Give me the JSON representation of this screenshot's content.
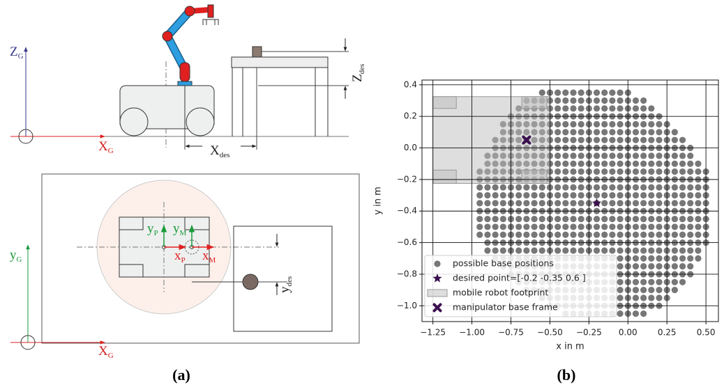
{
  "panel_a": {
    "caption": "(a)",
    "labels": {
      "z_g": {
        "main": "Z",
        "sub": "G"
      },
      "x_g_top": {
        "main": "X",
        "sub": "G"
      },
      "x_des": {
        "main": "X",
        "sub": "des"
      },
      "z_des": {
        "main": "Z",
        "sub": "des"
      },
      "y_p": {
        "main": "y",
        "sub": "P"
      },
      "y_m": {
        "main": "y",
        "sub": "M"
      },
      "x_p": {
        "main": "x",
        "sub": "P"
      },
      "x_m": {
        "main": "x",
        "sub": "M"
      },
      "y_g": {
        "main": "y",
        "sub": "G"
      },
      "x_g_bottom": {
        "main": "X",
        "sub": "G"
      },
      "y_des": {
        "main": "y",
        "sub": "des"
      }
    }
  },
  "chart_data": {
    "type": "scatter",
    "caption": "(b)",
    "xlabel": "x in m",
    "ylabel": "y in m",
    "xlim": [
      -1.32,
      0.58
    ],
    "ylim": [
      -1.1,
      0.43
    ],
    "xticks": [
      {
        "value": -1.25,
        "label": "−1.25"
      },
      {
        "value": -1,
        "label": "−1.00"
      },
      {
        "value": -0.75,
        "label": "−0.75"
      },
      {
        "value": -0.5,
        "label": "−0.50"
      },
      {
        "value": -0.25,
        "label": "−0.25"
      },
      {
        "value": 0,
        "label": "0.00"
      },
      0.25,
      {
        "value": 0.5,
        "label": "0.50"
      }
    ],
    "yticks": [
      {
        "value": -1,
        "label": "−1.0"
      },
      {
        "value": -0.8,
        "label": "−0.8"
      },
      {
        "value": -0.6,
        "label": "−0.6"
      },
      {
        "value": -0.4,
        "label": "−0.4"
      },
      {
        "value": -0.2,
        "label": "−0.2"
      },
      {
        "value": 0,
        "label": "0.0"
      },
      0.2,
      0.4
    ],
    "grid": true,
    "legend": "lower left",
    "series": [
      {
        "name": "possible base positions",
        "color": "#777777",
        "marker": "dot",
        "rows": [
          {
            "y": 0.35,
            "x": [
              -0.55,
              -0.5,
              -0.45,
              -0.4,
              -0.35,
              -0.3,
              -0.25,
              -0.2,
              -0.15,
              -0.1,
              -0.05,
              0
            ]
          },
          {
            "y": 0.3,
            "x": [
              -0.65,
              -0.6,
              -0.55,
              -0.5,
              -0.45,
              -0.4,
              -0.35,
              -0.3,
              -0.25,
              -0.2,
              -0.15,
              -0.1,
              -0.05,
              0,
              0.05,
              0.1
            ]
          },
          {
            "y": 0.25,
            "x": [
              -0.7,
              -0.65,
              -0.6,
              -0.55,
              -0.5,
              -0.45,
              -0.4,
              -0.35,
              -0.3,
              -0.25,
              -0.2,
              -0.15,
              -0.1,
              -0.05,
              0,
              0.05,
              0.1,
              0.15
            ]
          },
          {
            "y": 0.2,
            "x": [
              -0.75,
              -0.7,
              -0.65,
              -0.6,
              -0.55,
              -0.5,
              -0.45,
              -0.4,
              -0.35,
              -0.3,
              -0.25,
              -0.2,
              -0.15,
              -0.1,
              -0.05,
              0,
              0.05,
              0.1,
              0.15,
              0.2
            ]
          },
          {
            "y": 0.15,
            "x": [
              -0.8,
              -0.75,
              -0.7,
              -0.65,
              -0.6,
              -0.55,
              -0.5,
              -0.45,
              -0.4,
              -0.35,
              -0.3,
              -0.25,
              -0.2,
              -0.15,
              -0.1,
              -0.05,
              0,
              0.05,
              0.1,
              0.15,
              0.2,
              0.25
            ]
          },
          {
            "y": 0.1,
            "x": [
              -0.8,
              -0.75,
              -0.7,
              -0.65,
              -0.6,
              -0.55,
              -0.5,
              -0.45,
              -0.4,
              -0.35,
              -0.3,
              -0.25,
              -0.2,
              -0.15,
              -0.1,
              -0.05,
              0,
              0.05,
              0.1,
              0.15,
              0.2,
              0.25,
              0.3
            ]
          },
          {
            "y": 0.05,
            "x": [
              -0.85,
              -0.8,
              -0.75,
              -0.7,
              -0.65,
              -0.6,
              -0.55,
              -0.5,
              -0.45,
              -0.4,
              -0.35,
              -0.3,
              -0.25,
              -0.2,
              -0.15,
              -0.1,
              -0.05,
              0,
              0.05,
              0.1,
              0.15,
              0.2,
              0.25,
              0.3,
              0.35
            ]
          },
          {
            "y": 0,
            "x": [
              -0.85,
              -0.8,
              -0.75,
              -0.7,
              -0.65,
              -0.6,
              -0.55,
              -0.5,
              -0.45,
              -0.4,
              -0.35,
              -0.3,
              -0.25,
              -0.2,
              -0.15,
              -0.1,
              -0.05,
              0,
              0.05,
              0.1,
              0.15,
              0.2,
              0.25,
              0.3,
              0.35,
              0.4
            ]
          },
          {
            "y": -0.05,
            "x": [
              -0.9,
              -0.85,
              -0.8,
              -0.75,
              -0.7,
              -0.65,
              -0.6,
              -0.55,
              -0.5,
              -0.45,
              -0.4,
              -0.35,
              -0.3,
              -0.25,
              -0.2,
              -0.15,
              -0.1,
              -0.05,
              0,
              0.05,
              0.1,
              0.15,
              0.2,
              0.25,
              0.3,
              0.35,
              0.4
            ]
          },
          {
            "y": -0.1,
            "x": [
              -0.9,
              -0.85,
              -0.8,
              -0.75,
              -0.7,
              -0.65,
              -0.6,
              -0.55,
              -0.5,
              -0.45,
              -0.4,
              -0.35,
              -0.3,
              -0.25,
              -0.2,
              -0.15,
              -0.1,
              -0.05,
              0,
              0.05,
              0.1,
              0.15,
              0.2,
              0.25,
              0.3,
              0.35,
              0.4,
              0.45
            ]
          },
          {
            "y": -0.15,
            "x": [
              -0.95,
              -0.9,
              -0.85,
              -0.8,
              -0.75,
              -0.7,
              -0.65,
              -0.6,
              -0.55,
              -0.5,
              -0.45,
              -0.4,
              -0.35,
              -0.3,
              -0.25,
              -0.2,
              -0.15,
              -0.1,
              -0.05,
              0,
              0.05,
              0.1,
              0.15,
              0.2,
              0.25,
              0.3,
              0.35,
              0.4,
              0.45,
              0.5
            ]
          },
          {
            "y": -0.2,
            "x": [
              -0.95,
              -0.9,
              -0.85,
              -0.8,
              -0.75,
              -0.7,
              -0.65,
              -0.6,
              -0.55,
              -0.5,
              -0.45,
              -0.4,
              -0.35,
              -0.3,
              -0.25,
              -0.2,
              -0.15,
              -0.1,
              -0.05,
              0,
              0.05,
              0.1,
              0.15,
              0.2,
              0.25,
              0.3,
              0.35,
              0.4,
              0.45,
              0.5
            ]
          },
          {
            "y": -0.25,
            "x": [
              -0.95,
              -0.9,
              -0.85,
              -0.8,
              -0.75,
              -0.7,
              -0.65,
              -0.6,
              -0.55,
              -0.5,
              -0.45,
              -0.4,
              -0.35,
              -0.3,
              -0.25,
              -0.2,
              -0.15,
              -0.1,
              -0.05,
              0,
              0.05,
              0.1,
              0.15,
              0.2,
              0.25,
              0.3,
              0.35,
              0.4,
              0.45,
              0.5
            ]
          },
          {
            "y": -0.3,
            "x": [
              -0.95,
              -0.9,
              -0.85,
              -0.8,
              -0.75,
              -0.7,
              -0.65,
              -0.6,
              -0.55,
              -0.5,
              -0.45,
              -0.4,
              -0.35,
              -0.3,
              -0.25,
              -0.2,
              -0.15,
              -0.1,
              -0.05,
              0,
              0.05,
              0.1,
              0.15,
              0.2,
              0.25,
              0.3,
              0.35,
              0.4,
              0.45,
              0.5
            ]
          },
          {
            "y": -0.35,
            "x": [
              -0.95,
              -0.9,
              -0.85,
              -0.8,
              -0.75,
              -0.7,
              -0.65,
              -0.6,
              -0.55,
              -0.5,
              -0.45,
              -0.4,
              -0.35,
              -0.3,
              -0.25,
              -0.2,
              -0.15,
              -0.1,
              -0.05,
              0,
              0.05,
              0.1,
              0.15,
              0.2,
              0.25,
              0.3,
              0.35,
              0.4,
              0.45,
              0.5
            ]
          },
          {
            "y": -0.4,
            "x": [
              -0.95,
              -0.9,
              -0.85,
              -0.8,
              -0.75,
              -0.7,
              -0.65,
              -0.6,
              -0.55,
              -0.5,
              -0.45,
              -0.4,
              -0.35,
              -0.3,
              -0.25,
              -0.2,
              -0.15,
              -0.1,
              -0.05,
              0,
              0.05,
              0.1,
              0.15,
              0.2,
              0.25,
              0.3,
              0.35,
              0.4,
              0.45,
              0.5
            ]
          },
          {
            "y": -0.45,
            "x": [
              -0.95,
              -0.9,
              -0.85,
              -0.8,
              -0.75,
              -0.7,
              -0.65,
              -0.6,
              -0.55,
              -0.5,
              -0.45,
              -0.4,
              -0.35,
              -0.3,
              -0.25,
              -0.2,
              -0.15,
              -0.1,
              -0.05,
              0,
              0.05,
              0.1,
              0.15,
              0.2,
              0.25,
              0.3,
              0.35,
              0.4,
              0.45,
              0.5
            ]
          },
          {
            "y": -0.5,
            "x": [
              -0.95,
              -0.9,
              -0.85,
              -0.8,
              -0.75,
              -0.7,
              -0.65,
              -0.6,
              -0.55,
              -0.5,
              -0.45,
              -0.4,
              -0.35,
              -0.3,
              -0.25,
              -0.2,
              -0.15,
              -0.1,
              -0.05,
              0,
              0.05,
              0.1,
              0.15,
              0.2,
              0.25,
              0.3,
              0.35,
              0.4,
              0.45,
              0.5
            ]
          },
          {
            "y": -0.55,
            "x": [
              -0.95,
              -0.9,
              -0.85,
              -0.8,
              -0.75,
              -0.7,
              -0.65,
              -0.6,
              -0.55,
              -0.5,
              -0.45,
              -0.4,
              -0.35,
              -0.3,
              -0.25,
              -0.2,
              -0.15,
              -0.1,
              -0.05,
              0,
              0.05,
              0.1,
              0.15,
              0.2,
              0.25,
              0.3,
              0.35,
              0.4,
              0.45,
              0.5
            ]
          },
          {
            "y": -0.6,
            "x": [
              -0.9,
              -0.85,
              -0.8,
              -0.75,
              -0.7,
              -0.65,
              -0.6,
              -0.55,
              -0.5,
              -0.45,
              -0.4,
              -0.35,
              -0.3,
              -0.25,
              -0.2,
              -0.15,
              -0.1,
              -0.05,
              0,
              0.05,
              0.1,
              0.15,
              0.2,
              0.25,
              0.3,
              0.35,
              0.4,
              0.45,
              0.5
            ]
          },
          {
            "y": -0.65,
            "x": [
              -0.9,
              -0.85,
              -0.8,
              -0.75,
              -0.7,
              -0.65,
              -0.6,
              -0.55,
              -0.5,
              -0.45,
              -0.4,
              -0.35,
              -0.3,
              -0.25,
              -0.2,
              -0.15,
              -0.1,
              -0.05,
              0,
              0.05,
              0.1,
              0.15,
              0.2,
              0.25,
              0.3,
              0.35,
              0.4,
              0.45
            ]
          },
          {
            "y": -0.7,
            "x": [
              -0.85,
              -0.8,
              -0.75,
              -0.7,
              -0.65,
              -0.6,
              -0.55,
              -0.5,
              -0.45,
              -0.4,
              -0.35,
              -0.3,
              -0.25,
              -0.2,
              -0.15,
              -0.1,
              -0.05,
              0,
              0.05,
              0.1,
              0.15,
              0.2,
              0.25,
              0.3,
              0.35,
              0.4,
              0.45
            ]
          },
          {
            "y": -0.75,
            "x": [
              -0.8,
              -0.75,
              -0.7,
              -0.65,
              -0.6,
              -0.55,
              -0.5,
              -0.45,
              -0.4,
              -0.35,
              -0.3,
              -0.25,
              -0.2,
              -0.15,
              -0.1,
              -0.05,
              0,
              0.05,
              0.1,
              0.15,
              0.2,
              0.25,
              0.3,
              0.35,
              0.4
            ]
          },
          {
            "y": -0.8,
            "x": [
              -0.75,
              -0.7,
              -0.65,
              -0.6,
              -0.55,
              -0.5,
              -0.45,
              -0.4,
              -0.35,
              -0.3,
              -0.25,
              -0.2,
              -0.15,
              -0.1,
              -0.05,
              0,
              0.05,
              0.1,
              0.15,
              0.2,
              0.25,
              0.3,
              0.35,
              0.4
            ]
          },
          {
            "y": -0.85,
            "x": [
              -0.7,
              -0.65,
              -0.6,
              -0.55,
              -0.5,
              -0.45,
              -0.4,
              -0.35,
              -0.3,
              -0.25,
              -0.2,
              -0.15,
              -0.1,
              -0.05,
              0,
              0.05,
              0.1,
              0.15,
              0.2,
              0.25,
              0.3,
              0.35
            ]
          },
          {
            "y": -0.9,
            "x": [
              -0.65,
              -0.6,
              -0.55,
              -0.5,
              -0.45,
              -0.4,
              -0.35,
              -0.3,
              -0.25,
              -0.2,
              -0.15,
              -0.1,
              -0.05,
              0,
              0.05,
              0.1,
              0.15,
              0.2,
              0.25,
              0.3
            ]
          },
          {
            "y": -0.95,
            "x": [
              -0.55,
              -0.5,
              -0.45,
              -0.4,
              -0.35,
              -0.3,
              -0.25,
              -0.2,
              -0.15,
              -0.1,
              -0.05,
              0,
              0.05,
              0.1,
              0.15,
              0.2,
              0.25
            ]
          },
          {
            "y": -1,
            "x": [
              -0.5,
              -0.45,
              -0.4,
              -0.35,
              -0.3,
              -0.25,
              -0.2,
              -0.15,
              -0.1,
              -0.05,
              0,
              0.05,
              0.1,
              0.15,
              0.2
            ]
          },
          {
            "y": -1.05,
            "x": [
              -0.4,
              -0.35,
              -0.3,
              -0.25,
              -0.2,
              -0.15,
              -0.1,
              -0.05,
              0,
              0.05,
              0.1
            ]
          }
        ]
      },
      {
        "name": "desired point=[-0.2  -0.35  0.6 ]",
        "color": "#3b0f4f",
        "marker": "star",
        "x": [
          -0.2
        ],
        "y": [
          -0.35
        ]
      },
      {
        "name": "mobile robot footprint",
        "color": "#bdbdbd",
        "marker": "rect",
        "rects": [
          {
            "x": [
              -1.25,
              -0.5
            ],
            "y": [
              -0.225,
              0.325
            ]
          },
          {
            "x": [
              -1.25,
              -1.1
            ],
            "y": [
              0.25,
              0.325
            ]
          },
          {
            "x": [
              -0.68,
              -0.52
            ],
            "y": [
              0.25,
              0.325
            ]
          },
          {
            "x": [
              -1.25,
              -1.1
            ],
            "y": [
              -0.225,
              -0.14
            ]
          },
          {
            "x": [
              -0.68,
              -0.52
            ],
            "y": [
              -0.225,
              -0.14
            ]
          }
        ]
      },
      {
        "name": "manipulator base frame",
        "color": "#3b0f4f",
        "marker": "x",
        "x": [
          -0.65
        ],
        "y": [
          0.05
        ]
      }
    ]
  }
}
